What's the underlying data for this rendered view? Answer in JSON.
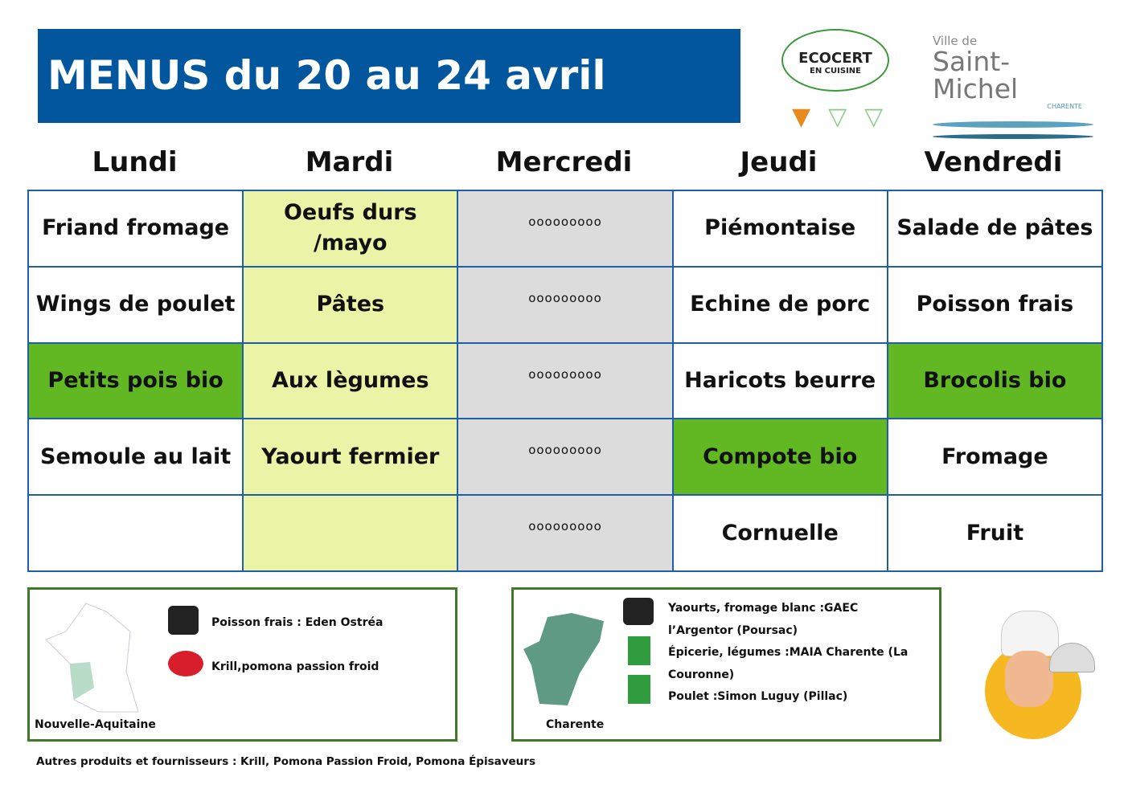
{
  "title": "MENUS du 20 au 24 avril",
  "logos": {
    "ecocert": "ECOCERT",
    "ecocert_sub": "EN CUISINE",
    "ville": "Ville de",
    "town": "Saint-Michel",
    "region": "CHARENTE"
  },
  "days": [
    "Lundi",
    "Mardi",
    "Mercredi",
    "Jeudi",
    "Vendredi"
  ],
  "rows": [
    [
      "Friand fromage",
      "Oeufs durs /mayo",
      "ooooooooo",
      "Piémontaise",
      "Salade de pâtes"
    ],
    [
      "Wings de poulet",
      "Pâtes",
      "ooooooooo",
      "Echine de porc",
      "Poisson frais"
    ],
    [
      "Petits pois bio",
      "Aux lègumes",
      "ooooooooo",
      "Haricots beurre",
      "Brocolis bio"
    ],
    [
      "Semoule au lait",
      "Yaourt fermier",
      "ooooooooo",
      "Compote bio",
      "Fromage"
    ],
    [
      "",
      "",
      "ooooooooo",
      "Cornuelle",
      "Fruit"
    ]
  ],
  "bio_cells": [
    [
      2,
      0
    ],
    [
      2,
      4
    ],
    [
      3,
      3
    ]
  ],
  "colors": {
    "title_bg": "#01569e",
    "mardi": "#ebf4a6",
    "mercredi": "#dcdcdc",
    "bio": "#62b822",
    "border": "#1e5fa8"
  },
  "nouvelle_aquitaine": {
    "label": "Nouvelle-Aquitaine",
    "items": [
      "Poisson frais : Eden Ostréa",
      "Krill,pomona passion froid"
    ]
  },
  "charente": {
    "label": "Charente",
    "items": [
      "Yaourts, fromage blanc :GAEC l’Argentor (Poursac)",
      "Épicerie, légumes :MAIA Charente (La Couronne)",
      "Poulet :Simon Luguy (Pillac)"
    ]
  },
  "footer": "Autres produits et fournisseurs : Krill, Pomona Passion Froid, Pomona Épisaveurs"
}
